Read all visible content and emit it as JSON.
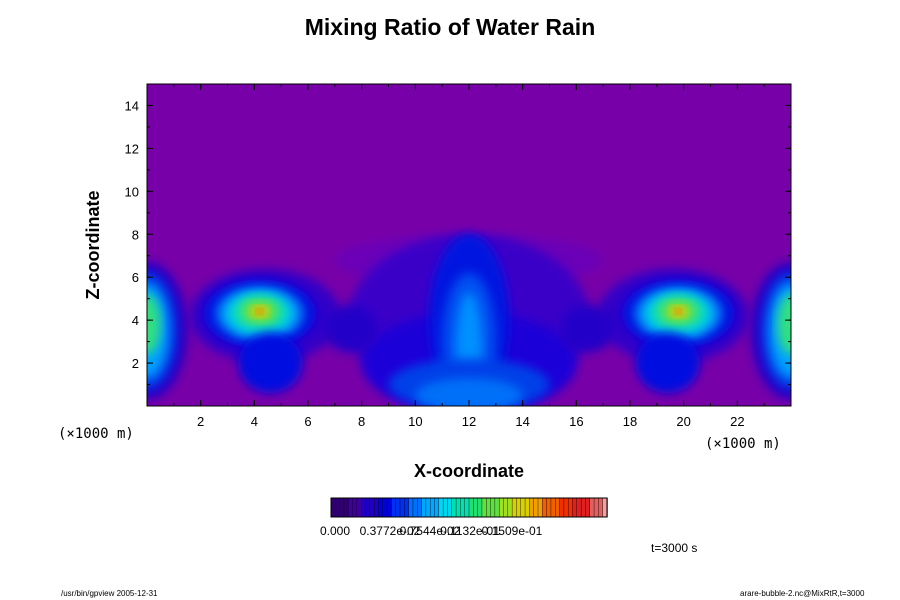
{
  "chart_data": {
    "type": "heatmap",
    "title": "Mixing Ratio of Water Rain",
    "xlabel": "X-coordinate",
    "ylabel": "Z-coordinate",
    "x_unit": "(×1000 m)",
    "z_unit": "(×1000 m)",
    "xlim": [
      0,
      24
    ],
    "ylim": [
      0,
      15
    ],
    "x_ticks": [
      2,
      4,
      6,
      8,
      10,
      12,
      14,
      16,
      18,
      20,
      22
    ],
    "y_ticks": [
      2,
      4,
      6,
      8,
      10,
      12,
      14
    ],
    "colorbar": {
      "min": 0,
      "max": 0.018,
      "tick_labels": [
        "0.000",
        "0.3772e-02",
        "0.7544e-02",
        "0.1132e-01",
        "0.1509e-01"
      ]
    },
    "features": [
      {
        "x": 4.2,
        "z": 4.4,
        "peak": 0.0113
      },
      {
        "x": 19.8,
        "z": 4.4,
        "peak": 0.0113
      },
      {
        "x": 12.0,
        "z": 2.5,
        "peak": 0.0045
      },
      {
        "x": 0.0,
        "z": 3.5,
        "peak": 0.0075
      },
      {
        "x": 24.0,
        "z": 3.5,
        "peak": 0.0075
      }
    ],
    "time_label": "t=3000 s"
  },
  "footer": {
    "left": "/usr/bin/gpview 2005-12-31",
    "right": "arare-bubble-2.nc@MixRtR,t=3000"
  },
  "colors": {
    "background_field": "#7800a8",
    "axis": "#000000"
  }
}
